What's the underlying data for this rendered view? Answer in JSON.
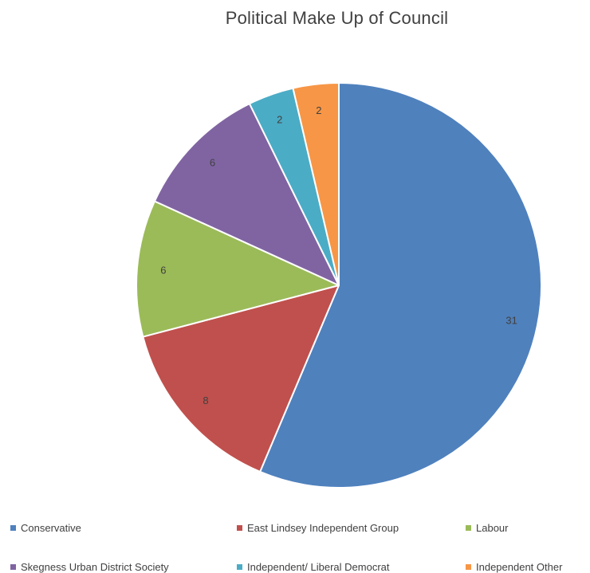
{
  "chart_data": {
    "type": "pie",
    "title": "Political Make Up of Council",
    "categories": [
      "Conservative",
      "East Lindsey Independent Group",
      "Labour",
      "Skegness Urban District Society",
      "Independent/ Liberal Democrat",
      "Independent Other"
    ],
    "values": [
      31,
      8,
      6,
      6,
      2,
      2
    ],
    "colors": [
      "#4f81bd",
      "#c0504d",
      "#9bbb59",
      "#8064a2",
      "#4bacc6",
      "#f79646"
    ],
    "data_labels": [
      "31",
      "8",
      "6",
      "6",
      "2",
      "2"
    ],
    "legend_position": "bottom"
  }
}
